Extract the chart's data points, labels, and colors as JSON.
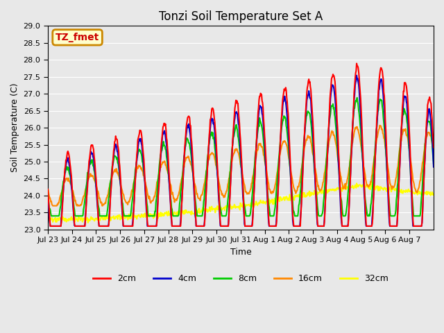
{
  "title": "Tonzi Soil Temperature Set A",
  "xlabel": "Time",
  "ylabel": "Soil Temperature (C)",
  "ylim": [
    23.0,
    29.0
  ],
  "yticks": [
    23.0,
    23.5,
    24.0,
    24.5,
    25.0,
    25.5,
    26.0,
    26.5,
    27.0,
    27.5,
    28.0,
    28.5,
    29.0
  ],
  "xtick_labels": [
    "Jul 23",
    "Jul 24",
    "Jul 25",
    "Jul 26",
    "Jul 27",
    "Jul 28",
    "Jul 29",
    "Jul 30",
    "Jul 31",
    "Aug 1",
    "Aug 2",
    "Aug 3",
    "Aug 4",
    "Aug 5",
    "Aug 6",
    "Aug 7"
  ],
  "colors": {
    "2cm": "#ff0000",
    "4cm": "#0000cc",
    "8cm": "#00cc00",
    "16cm": "#ff8800",
    "32cm": "#ffff00"
  },
  "legend_label": "TZ_fmet",
  "legend_box_bg": "#ffffcc",
  "legend_box_edge": "#cc8800",
  "plot_bg": "#e8e8e8",
  "fig_bg": "#e8e8e8",
  "line_width": 1.5,
  "n_days": 16
}
